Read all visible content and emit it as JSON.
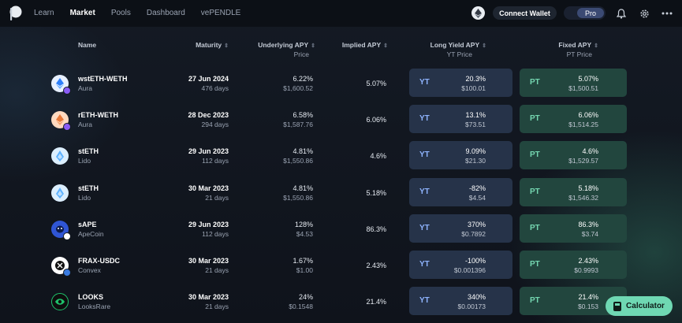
{
  "nav": {
    "links": [
      "Learn",
      "Market",
      "Pools",
      "Dashboard",
      "vePENDLE"
    ],
    "active": "Market",
    "connect_wallet": "Connect Wallet",
    "pro": "Pro",
    "icons": [
      "pendle-logo-icon",
      "ethereum-icon",
      "bell-icon",
      "gear-icon",
      "more-dots-icon"
    ]
  },
  "table": {
    "headers": {
      "name": "Name",
      "maturity": "Maturity",
      "underlying_apy": "Underlying APY",
      "underlying_sub": "Price",
      "implied_apy": "Implied APY",
      "long_yield": "Long Yield APY",
      "long_yield_sub": "YT Price",
      "fixed_apy": "Fixed APY",
      "fixed_sub": "PT Price"
    },
    "yt_tag": "YT",
    "pt_tag": "PT",
    "rows": [
      {
        "name": "wstETH-WETH",
        "protocol": "Aura",
        "date": "27 Jun 2024",
        "days": "476 days",
        "u_apy": "6.22%",
        "u_price": "$1,600.52",
        "implied": "5.07%",
        "yt_apy": "20.3%",
        "yt_price": "$100.01",
        "pt_apy": "5.07%",
        "pt_price": "$1,500.51",
        "icon": "wsteth-weth-icon",
        "color": "#7fb6ff"
      },
      {
        "name": "rETH-WETH",
        "protocol": "Aura",
        "date": "28 Dec 2023",
        "days": "294 days",
        "u_apy": "6.58%",
        "u_price": "$1,587.76",
        "implied": "6.06%",
        "yt_apy": "13.1%",
        "yt_price": "$73.51",
        "pt_apy": "6.06%",
        "pt_price": "$1,514.25",
        "icon": "reth-weth-icon",
        "color": "#f4a36b"
      },
      {
        "name": "stETH",
        "protocol": "Lido",
        "date": "29 Jun 2023",
        "days": "112 days",
        "u_apy": "4.81%",
        "u_price": "$1,550.86",
        "implied": "4.6%",
        "yt_apy": "9.09%",
        "yt_price": "$21.30",
        "pt_apy": "4.6%",
        "pt_price": "$1,529.57",
        "icon": "steth-icon",
        "color": "#9ed3ff"
      },
      {
        "name": "stETH",
        "protocol": "Lido",
        "date": "30 Mar 2023",
        "days": "21 days",
        "u_apy": "4.81%",
        "u_price": "$1,550.86",
        "implied": "5.18%",
        "yt_apy": "-82%",
        "yt_price": "$4.54",
        "pt_apy": "5.18%",
        "pt_price": "$1,546.32",
        "icon": "steth-icon",
        "color": "#9ed3ff"
      },
      {
        "name": "sAPE",
        "protocol": "ApeCoin",
        "date": "29 Jun 2023",
        "days": "112 days",
        "u_apy": "128%",
        "u_price": "$4.53",
        "implied": "86.3%",
        "yt_apy": "370%",
        "yt_price": "$0.7892",
        "pt_apy": "86.3%",
        "pt_price": "$3.74",
        "icon": "apecoin-icon",
        "color": "#2f55d4"
      },
      {
        "name": "FRAX-USDC",
        "protocol": "Convex",
        "date": "30 Mar 2023",
        "days": "21 days",
        "u_apy": "1.67%",
        "u_price": "$1.00",
        "implied": "2.43%",
        "yt_apy": "-100%",
        "yt_price": "$0.001396",
        "pt_apy": "2.43%",
        "pt_price": "$0.9993",
        "icon": "frax-usdc-icon",
        "color": "#1c1c1c"
      },
      {
        "name": "LOOKS",
        "protocol": "LooksRare",
        "date": "30 Mar 2023",
        "days": "21 days",
        "u_apy": "24%",
        "u_price": "$0.1548",
        "implied": "21.4%",
        "yt_apy": "340%",
        "yt_price": "$0.00173",
        "pt_apy": "21.4%",
        "pt_price": "$0.153",
        "icon": "looksrare-icon",
        "color": "#1fc26b"
      }
    ]
  },
  "calculator": "Calculator"
}
